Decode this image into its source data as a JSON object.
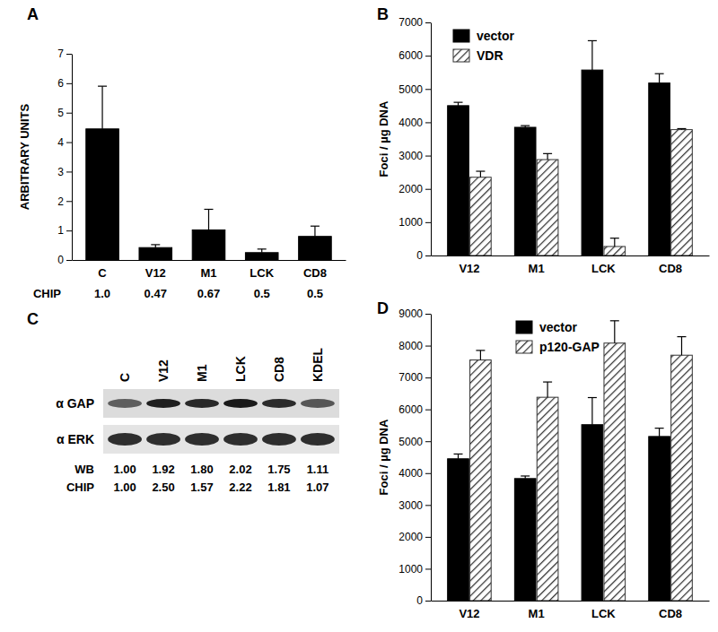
{
  "chart_data": [
    {
      "type": "bar",
      "title": "A",
      "ylabel": "ARBITRARY UNITS",
      "categories": [
        "C",
        "V12",
        "M1",
        "LCK",
        "CD8"
      ],
      "values": [
        4.45,
        0.42,
        1.02,
        0.25,
        0.8
      ],
      "errors": [
        1.45,
        0.1,
        0.7,
        0.12,
        0.35
      ],
      "color": "#000000",
      "ylim": [
        0,
        7
      ],
      "yticks": [
        0,
        1,
        2,
        3,
        4,
        5,
        6,
        7
      ],
      "row_label": "CHIP",
      "row_values": [
        1.0,
        0.47,
        0.67,
        0.5,
        0.5
      ],
      "row_value_labels": [
        "1.0",
        "0.47",
        "0.67",
        "0.5",
        "0.5"
      ]
    },
    {
      "type": "bar",
      "title": "B",
      "ylabel": "Foci / µg DNA",
      "categories": [
        "V12",
        "M1",
        "LCK",
        "CD8"
      ],
      "series": [
        {
          "name": "vector",
          "color": "#000000",
          "values": [
            4500,
            3850,
            5570,
            5180
          ],
          "errors": [
            100,
            50,
            880,
            280
          ]
        },
        {
          "name": "VDR",
          "color": "#333333",
          "values": [
            2350,
            2880,
            270,
            3780
          ],
          "errors": [
            180,
            180,
            250,
            30
          ]
        }
      ],
      "ylim": [
        0,
        7000
      ],
      "yticks": [
        0,
        1000,
        2000,
        3000,
        4000,
        5000,
        6000,
        7000
      ],
      "legend": "upper left"
    },
    {
      "type": "blot",
      "title": "C",
      "categories": [
        "C",
        "V12",
        "M1",
        "LCK",
        "CD8",
        "KDEL"
      ],
      "rows": [
        "α GAP",
        "α ERK"
      ],
      "WB": {
        "label": "WB",
        "values": [
          1.0,
          1.92,
          1.8,
          2.02,
          1.75,
          1.11
        ],
        "value_labels": [
          "1.00",
          "1.92",
          "1.80",
          "2.02",
          "1.75",
          "1.11"
        ]
      },
      "CHIP": {
        "label": "CHIP",
        "values": [
          1.0,
          2.5,
          1.57,
          2.22,
          1.81,
          1.07
        ],
        "value_labels": [
          "1.00",
          "2.50",
          "1.57",
          "2.22",
          "1.81",
          "1.07"
        ]
      }
    },
    {
      "type": "bar",
      "title": "D",
      "ylabel": "Foci / µg DNA",
      "categories": [
        "V12",
        "M1",
        "LCK",
        "CD8"
      ],
      "series": [
        {
          "name": "vector",
          "color": "#000000",
          "values": [
            4450,
            3830,
            5520,
            5150
          ],
          "errors": [
            150,
            80,
            850,
            260
          ]
        },
        {
          "name": "p120-GAP",
          "color": "#333333",
          "values": [
            7550,
            6380,
            8080,
            7700
          ],
          "errors": [
            300,
            480,
            700,
            580
          ]
        }
      ],
      "ylim": [
        0,
        9000
      ],
      "yticks": [
        0,
        1000,
        2000,
        3000,
        4000,
        5000,
        6000,
        7000,
        8000,
        9000
      ],
      "legend": "upper center"
    }
  ]
}
